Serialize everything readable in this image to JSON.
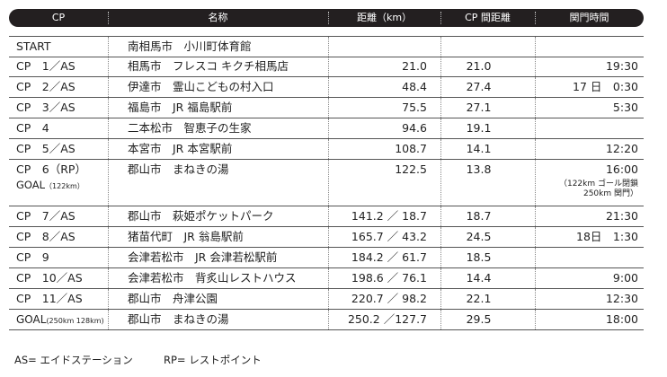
{
  "header": {
    "cp": "CP",
    "name": "名称",
    "dist": "距離（km）",
    "cp_dist": "CP 間距離",
    "time": "関門時間"
  },
  "rows": [
    {
      "cp": "START",
      "name": "南相馬市　小川町体育館",
      "dist": "",
      "cp_dist": "",
      "time": ""
    },
    {
      "cp": "CP　1／AS",
      "name": "相馬市　フレスコ キクチ相馬店",
      "dist": "21.0",
      "cp_dist": "21.0",
      "time": "19:30"
    },
    {
      "cp": "CP　2／AS",
      "name": "伊達市　霊山こどもの村入口",
      "dist": "48.4",
      "cp_dist": "27.4",
      "time": "17 日　0:30"
    },
    {
      "cp": "CP　3／AS",
      "name": "福島市　JR 福島駅前",
      "dist": "75.5",
      "cp_dist": "27.1",
      "time": "5:30"
    },
    {
      "cp": "CP　4",
      "name": "二本松市　智恵子の生家",
      "dist": "94.6",
      "cp_dist": "19.1",
      "time": ""
    },
    {
      "cp": "CP　5／AS",
      "name": "本宮市　JR 本宮駅前",
      "dist": "108.7",
      "cp_dist": "14.1",
      "time": "12:20"
    },
    {
      "cp": "CP　6（RP）",
      "name": "郡山市　まねきの湯",
      "dist": "122.5",
      "cp_dist": "13.8",
      "time": "16:00",
      "sub_main": "GOAL",
      "sub_small": "（122km）",
      "note_1": "（122km ゴール閉鎖",
      "note_2": "250km 関門）"
    },
    {
      "cp": "CP　7／AS",
      "name": "郡山市　萩姫ポケットパーク",
      "dist": "141.2 ／ 18.7",
      "cp_dist": "18.7",
      "time": "21:30"
    },
    {
      "cp": "CP　8／AS",
      "name": "猪苗代町　JR 翁島駅前",
      "dist": "165.7 ／ 43.2",
      "cp_dist": "24.5",
      "time": "18日　1:30"
    },
    {
      "cp": "CP　9",
      "name": "会津若松市　JR 会津若松駅前",
      "dist": "184.2 ／ 61.7",
      "cp_dist": "18.5",
      "time": ""
    },
    {
      "cp": "CP　10／AS",
      "name": "会津若松市　背炙山レストハウス",
      "dist": "198.6 ／ 76.1",
      "cp_dist": "14.4",
      "time": "9:00"
    },
    {
      "cp": "CP　11／AS",
      "name": "郡山市　舟津公園",
      "dist": "220.7 ／ 98.2",
      "cp_dist": "22.1",
      "time": "12:30"
    },
    {
      "cp_main": "GOAL",
      "cp_small": "(250km 128km)",
      "name": "郡山市　まねきの湯",
      "dist": "250.2 ／127.7",
      "cp_dist": "29.5",
      "time": "18:00"
    }
  ],
  "legend": {
    "as": "AS= エイドステーション",
    "rp": "RP= レストポイント"
  }
}
